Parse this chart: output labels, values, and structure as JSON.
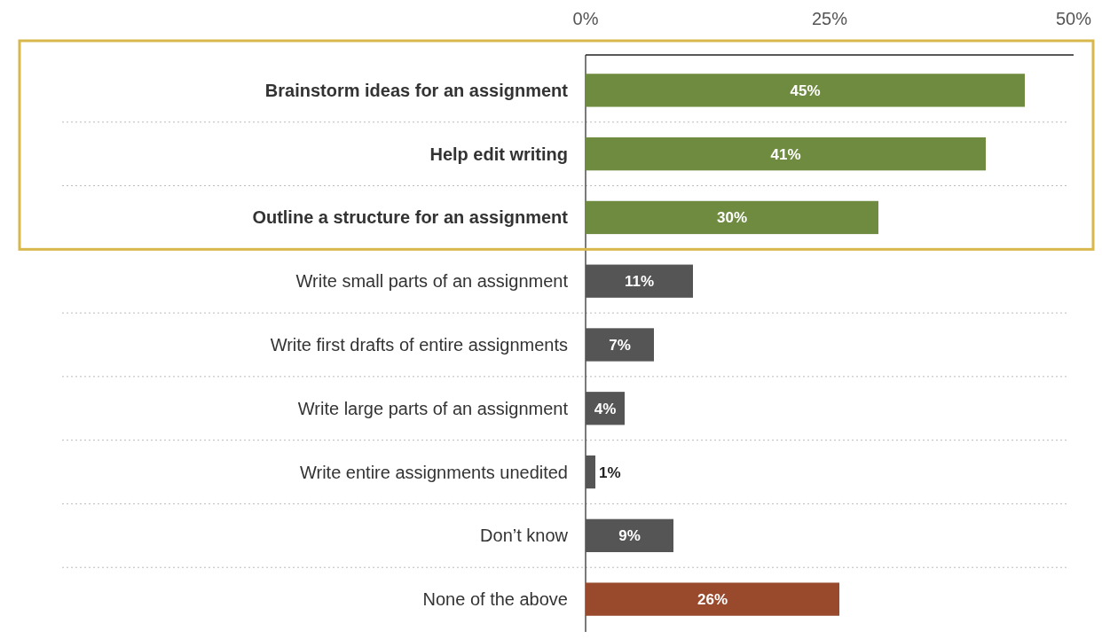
{
  "chart_data": {
    "type": "bar",
    "orientation": "horizontal",
    "categories": [
      "Brainstorm ideas for an assignment",
      "Help edit writing",
      "Outline a structure for an assignment",
      "Write small parts of an assignment",
      "Write first drafts of entire assignments",
      "Write large parts of an assignment",
      "Write entire assignments unedited",
      "Don’t know",
      "None of the above"
    ],
    "values": [
      45,
      41,
      30,
      11,
      7,
      4,
      1,
      9,
      26
    ],
    "colors": [
      "#6f8b3f",
      "#6f8b3f",
      "#6f8b3f",
      "#555555",
      "#555555",
      "#555555",
      "#555555",
      "#555555",
      "#9a4a2c"
    ],
    "value_labels": [
      "45%",
      "41%",
      "30%",
      "11%",
      "7%",
      "4%",
      "1%",
      "9%",
      "26%"
    ],
    "xlim": [
      0,
      50
    ],
    "xticks": [
      {
        "value": 0,
        "label": "0%"
      },
      {
        "value": 25,
        "label": "25%"
      },
      {
        "value": 50,
        "label": "50%"
      }
    ],
    "grid": "y"
  }
}
